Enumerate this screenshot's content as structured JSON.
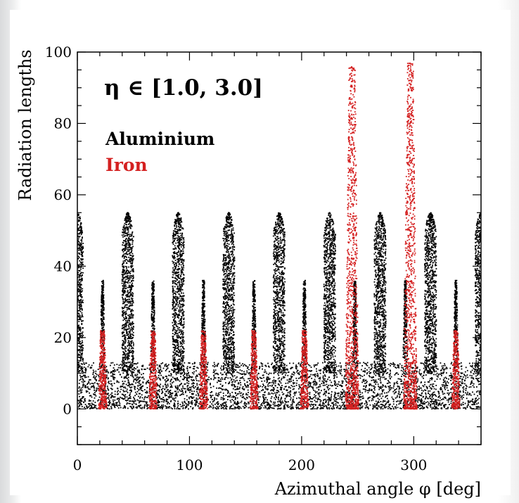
{
  "chart_data": {
    "type": "scatter",
    "title": "",
    "annotation": "η ∈ [1.0, 3.0]",
    "xlabel": "Azimuthal angle φ  [deg]",
    "ylabel": "Radiation lengths",
    "xlim": [
      0,
      360
    ],
    "ylim": [
      -10,
      100
    ],
    "x_ticks": [
      0,
      100,
      200,
      300
    ],
    "x_tick_labels": [
      "0",
      "100",
      "200",
      "300"
    ],
    "y_ticks": [
      0,
      20,
      40,
      60,
      80,
      100
    ],
    "y_tick_labels": [
      "0",
      "20",
      "40",
      "60",
      "80",
      "100"
    ],
    "grid": false,
    "legend_position": "top-left",
    "series": [
      {
        "name": "Aluminium",
        "color": "#000000",
        "description_peaks": "tall clusters to ~55 at phi = 0, 45, 90, 135, 180, 225, 270, 315, 360; short clusters to ~36 at phi = 22.5, 67.5, 112.5, 157.5, 202.5, 247.5, 292.5, 337.5; continuous band 0 to ~13",
        "tall_peaks": [
          {
            "phi": 0,
            "max": 55
          },
          {
            "phi": 45,
            "max": 55
          },
          {
            "phi": 90,
            "max": 55
          },
          {
            "phi": 135,
            "max": 55
          },
          {
            "phi": 180,
            "max": 55
          },
          {
            "phi": 225,
            "max": 55
          },
          {
            "phi": 270,
            "max": 55
          },
          {
            "phi": 315,
            "max": 55
          },
          {
            "phi": 360,
            "max": 55
          }
        ],
        "short_peaks": [
          {
            "phi": 22.5,
            "max": 36
          },
          {
            "phi": 67.5,
            "max": 36
          },
          {
            "phi": 112.5,
            "max": 36
          },
          {
            "phi": 157.5,
            "max": 36
          },
          {
            "phi": 202.5,
            "max": 36
          },
          {
            "phi": 247.5,
            "max": 36
          },
          {
            "phi": 292.5,
            "max": 36
          },
          {
            "phi": 337.5,
            "max": 36
          }
        ],
        "base_band": [
          0,
          13
        ]
      },
      {
        "name": "Iron",
        "color": "#d42020",
        "clusters": [
          {
            "phi": 22.5,
            "max": 22
          },
          {
            "phi": 67.5,
            "max": 22
          },
          {
            "phi": 112.5,
            "max": 22
          },
          {
            "phi": 157.5,
            "max": 22
          },
          {
            "phi": 202.5,
            "max": 22
          },
          {
            "phi": 245,
            "max": 96
          },
          {
            "phi": 297,
            "max": 97
          },
          {
            "phi": 337.5,
            "max": 22
          }
        ]
      }
    ]
  }
}
